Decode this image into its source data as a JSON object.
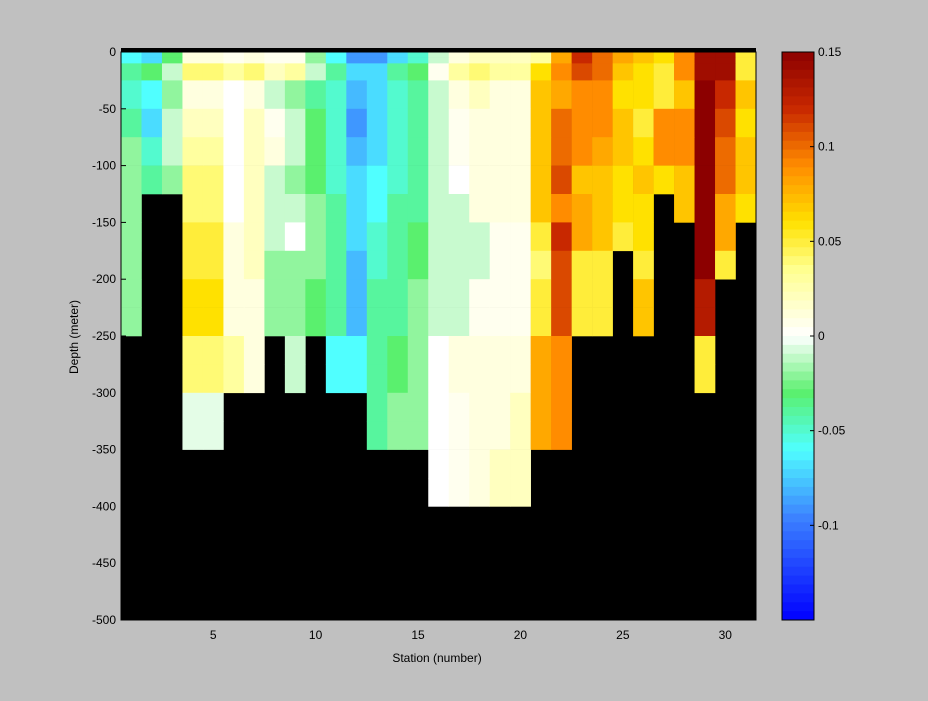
{
  "chart_data": {
    "type": "heatmap",
    "title": "",
    "xlabel": "Station (number)",
    "ylabel": "Depth (meter)",
    "xlim": [
      1,
      31
    ],
    "ylim": [
      -500,
      0
    ],
    "xticks": [
      5,
      10,
      15,
      20,
      25,
      30
    ],
    "yticks": [
      0,
      -50,
      -100,
      -150,
      -200,
      -250,
      -300,
      -350,
      -400,
      -450,
      -500
    ],
    "colorbar": {
      "range": [
        -0.15,
        0.15
      ],
      "ticks": [
        0.15,
        0.1,
        0.05,
        0,
        -0.05,
        -0.1
      ],
      "tick_labels": [
        "0.15",
        "0.1",
        "0.05",
        "0",
        "-0.05",
        "-0.1"
      ],
      "colormap": "jet-white-center"
    },
    "background_color": "#000000",
    "stations": [
      1,
      2,
      3,
      4,
      5,
      6,
      7,
      8,
      9,
      10,
      11,
      12,
      13,
      14,
      15,
      16,
      17,
      18,
      19,
      20,
      21,
      22,
      23,
      24,
      25,
      26,
      27,
      28,
      29,
      30,
      31
    ],
    "depth_bin_edges": [
      0,
      -5,
      -10,
      -25,
      -50,
      -75,
      -100,
      -125,
      -150,
      -175,
      -200,
      -225,
      -250,
      -275,
      -300,
      -325,
      -350,
      -375,
      -400
    ],
    "values": [
      [
        -0.06,
        -0.07,
        -0.03,
        0.01,
        0.01,
        0.005,
        0.01,
        0.005,
        0.005,
        -0.02,
        -0.06,
        -0.09,
        -0.09,
        -0.07,
        -0.05,
        -0.01,
        0.01,
        0.02,
        0.02,
        0.02,
        0.03,
        0.08,
        0.12,
        0.1,
        0.08,
        0.07,
        0.06,
        0.09,
        0.14,
        0.14,
        0.05
      ],
      [
        -0.06,
        -0.07,
        -0.03,
        0.01,
        0.01,
        0.005,
        0.01,
        0.005,
        0.005,
        -0.02,
        -0.06,
        -0.09,
        -0.09,
        -0.07,
        -0.05,
        -0.01,
        0.01,
        0.02,
        0.02,
        0.02,
        0.03,
        0.08,
        0.12,
        0.1,
        0.08,
        0.07,
        0.06,
        0.09,
        0.14,
        0.14,
        0.05
      ],
      [
        -0.04,
        -0.03,
        -0.01,
        0.04,
        0.04,
        0.03,
        0.04,
        0.02,
        0.03,
        -0.01,
        -0.04,
        -0.07,
        -0.07,
        -0.04,
        -0.03,
        0.005,
        0.03,
        0.04,
        0.03,
        0.03,
        0.06,
        0.09,
        0.11,
        0.1,
        0.07,
        0.06,
        0.05,
        0.09,
        0.14,
        0.14,
        0.05
      ],
      [
        -0.05,
        -0.06,
        -0.02,
        0.01,
        0.01,
        0.0,
        0.01,
        -0.01,
        -0.02,
        -0.04,
        -0.05,
        -0.08,
        -0.07,
        -0.05,
        -0.04,
        -0.01,
        0.01,
        0.02,
        0.01,
        0.01,
        0.07,
        0.08,
        0.09,
        0.09,
        0.06,
        0.06,
        0.05,
        0.07,
        0.15,
        0.12,
        0.07
      ],
      [
        -0.04,
        -0.07,
        -0.01,
        0.02,
        0.02,
        0.0,
        0.02,
        0.005,
        -0.01,
        -0.03,
        -0.05,
        -0.09,
        -0.07,
        -0.05,
        -0.04,
        -0.01,
        0.005,
        0.01,
        0.01,
        0.01,
        0.07,
        0.1,
        0.09,
        0.09,
        0.07,
        0.05,
        0.09,
        0.09,
        0.15,
        0.11,
        0.06
      ],
      [
        -0.02,
        -0.05,
        -0.01,
        0.03,
        0.03,
        0.0,
        0.02,
        0.01,
        -0.01,
        -0.03,
        -0.05,
        -0.08,
        -0.07,
        -0.05,
        -0.04,
        -0.01,
        0.005,
        0.01,
        0.01,
        0.01,
        0.07,
        0.1,
        0.09,
        0.08,
        0.07,
        0.06,
        0.09,
        0.09,
        0.15,
        0.1,
        0.07
      ],
      [
        -0.02,
        -0.04,
        -0.02,
        0.04,
        0.04,
        0.0,
        0.02,
        -0.01,
        -0.02,
        -0.03,
        -0.05,
        -0.07,
        -0.06,
        -0.05,
        -0.04,
        -0.01,
        0.0,
        0.01,
        0.01,
        0.01,
        0.07,
        0.11,
        0.07,
        0.07,
        0.06,
        0.07,
        0.06,
        0.07,
        0.15,
        0.1,
        0.07
      ],
      [
        -0.02,
        null,
        null,
        0.04,
        0.04,
        0.0,
        0.02,
        -0.01,
        -0.01,
        -0.02,
        -0.04,
        -0.07,
        -0.06,
        -0.04,
        -0.04,
        -0.01,
        -0.01,
        0.01,
        0.01,
        0.01,
        0.07,
        0.09,
        0.08,
        0.07,
        0.06,
        0.06,
        null,
        0.07,
        0.15,
        0.08,
        0.06
      ],
      [
        -0.02,
        null,
        null,
        0.05,
        0.05,
        0.01,
        0.02,
        -0.01,
        0.0,
        -0.02,
        -0.04,
        -0.07,
        -0.05,
        -0.04,
        -0.03,
        -0.01,
        -0.01,
        -0.01,
        0.005,
        0.005,
        0.05,
        0.12,
        0.08,
        0.07,
        0.05,
        0.06,
        null,
        null,
        0.15,
        0.08,
        null
      ],
      [
        -0.02,
        null,
        null,
        0.05,
        0.05,
        0.01,
        0.02,
        -0.02,
        -0.02,
        -0.02,
        -0.04,
        -0.08,
        -0.05,
        -0.04,
        -0.03,
        -0.01,
        -0.01,
        -0.01,
        0.005,
        0.005,
        0.04,
        0.11,
        0.05,
        0.05,
        null,
        0.05,
        null,
        null,
        0.15,
        0.05,
        null
      ],
      [
        -0.02,
        null,
        null,
        0.06,
        0.06,
        0.01,
        0.01,
        -0.02,
        -0.02,
        -0.03,
        -0.04,
        -0.08,
        -0.04,
        -0.04,
        -0.02,
        -0.01,
        -0.01,
        0.005,
        0.005,
        0.005,
        0.05,
        0.11,
        0.05,
        0.05,
        null,
        0.07,
        null,
        null,
        0.13,
        null,
        null
      ],
      [
        -0.02,
        null,
        null,
        0.06,
        0.06,
        0.01,
        0.01,
        -0.02,
        -0.02,
        -0.03,
        -0.04,
        -0.08,
        -0.04,
        -0.04,
        -0.02,
        -0.01,
        -0.01,
        0.005,
        0.005,
        0.005,
        0.05,
        0.11,
        0.05,
        0.05,
        null,
        0.07,
        null,
        null,
        0.13,
        null,
        null
      ],
      [
        null,
        null,
        null,
        0.04,
        0.04,
        0.03,
        0.01,
        null,
        -0.01,
        null,
        -0.06,
        -0.06,
        -0.04,
        -0.03,
        -0.02,
        0.0,
        0.01,
        0.01,
        0.01,
        0.01,
        0.08,
        0.09,
        null,
        null,
        null,
        null,
        null,
        null,
        0.05,
        null,
        null
      ],
      [
        null,
        null,
        null,
        0.04,
        0.04,
        0.03,
        0.01,
        null,
        -0.01,
        null,
        -0.06,
        -0.06,
        -0.04,
        -0.03,
        -0.02,
        0.0,
        0.01,
        0.01,
        0.01,
        0.01,
        0.08,
        0.09,
        null,
        null,
        null,
        null,
        null,
        null,
        0.05,
        null,
        null
      ],
      [
        null,
        null,
        null,
        -0.005,
        -0.005,
        null,
        null,
        null,
        null,
        null,
        null,
        null,
        -0.04,
        -0.02,
        -0.02,
        0.0,
        0.005,
        0.01,
        0.01,
        0.02,
        0.08,
        0.09,
        null,
        null,
        null,
        null,
        null,
        null,
        null,
        null,
        null
      ],
      [
        null,
        null,
        null,
        -0.005,
        -0.005,
        null,
        null,
        null,
        null,
        null,
        null,
        null,
        -0.04,
        -0.02,
        -0.02,
        0.0,
        0.005,
        0.01,
        0.01,
        0.02,
        0.08,
        0.09,
        null,
        null,
        null,
        null,
        null,
        null,
        null,
        null,
        null
      ],
      [
        null,
        null,
        null,
        null,
        null,
        null,
        null,
        null,
        null,
        null,
        null,
        null,
        null,
        null,
        null,
        0.0,
        0.005,
        0.01,
        0.02,
        0.02,
        null,
        null,
        null,
        null,
        null,
        null,
        null,
        null,
        null,
        null,
        null
      ],
      [
        null,
        null,
        null,
        null,
        null,
        null,
        null,
        null,
        null,
        null,
        null,
        null,
        null,
        null,
        null,
        0.0,
        0.005,
        0.01,
        0.02,
        0.02,
        null,
        null,
        null,
        null,
        null,
        null,
        null,
        null,
        null,
        null,
        null
      ]
    ]
  }
}
